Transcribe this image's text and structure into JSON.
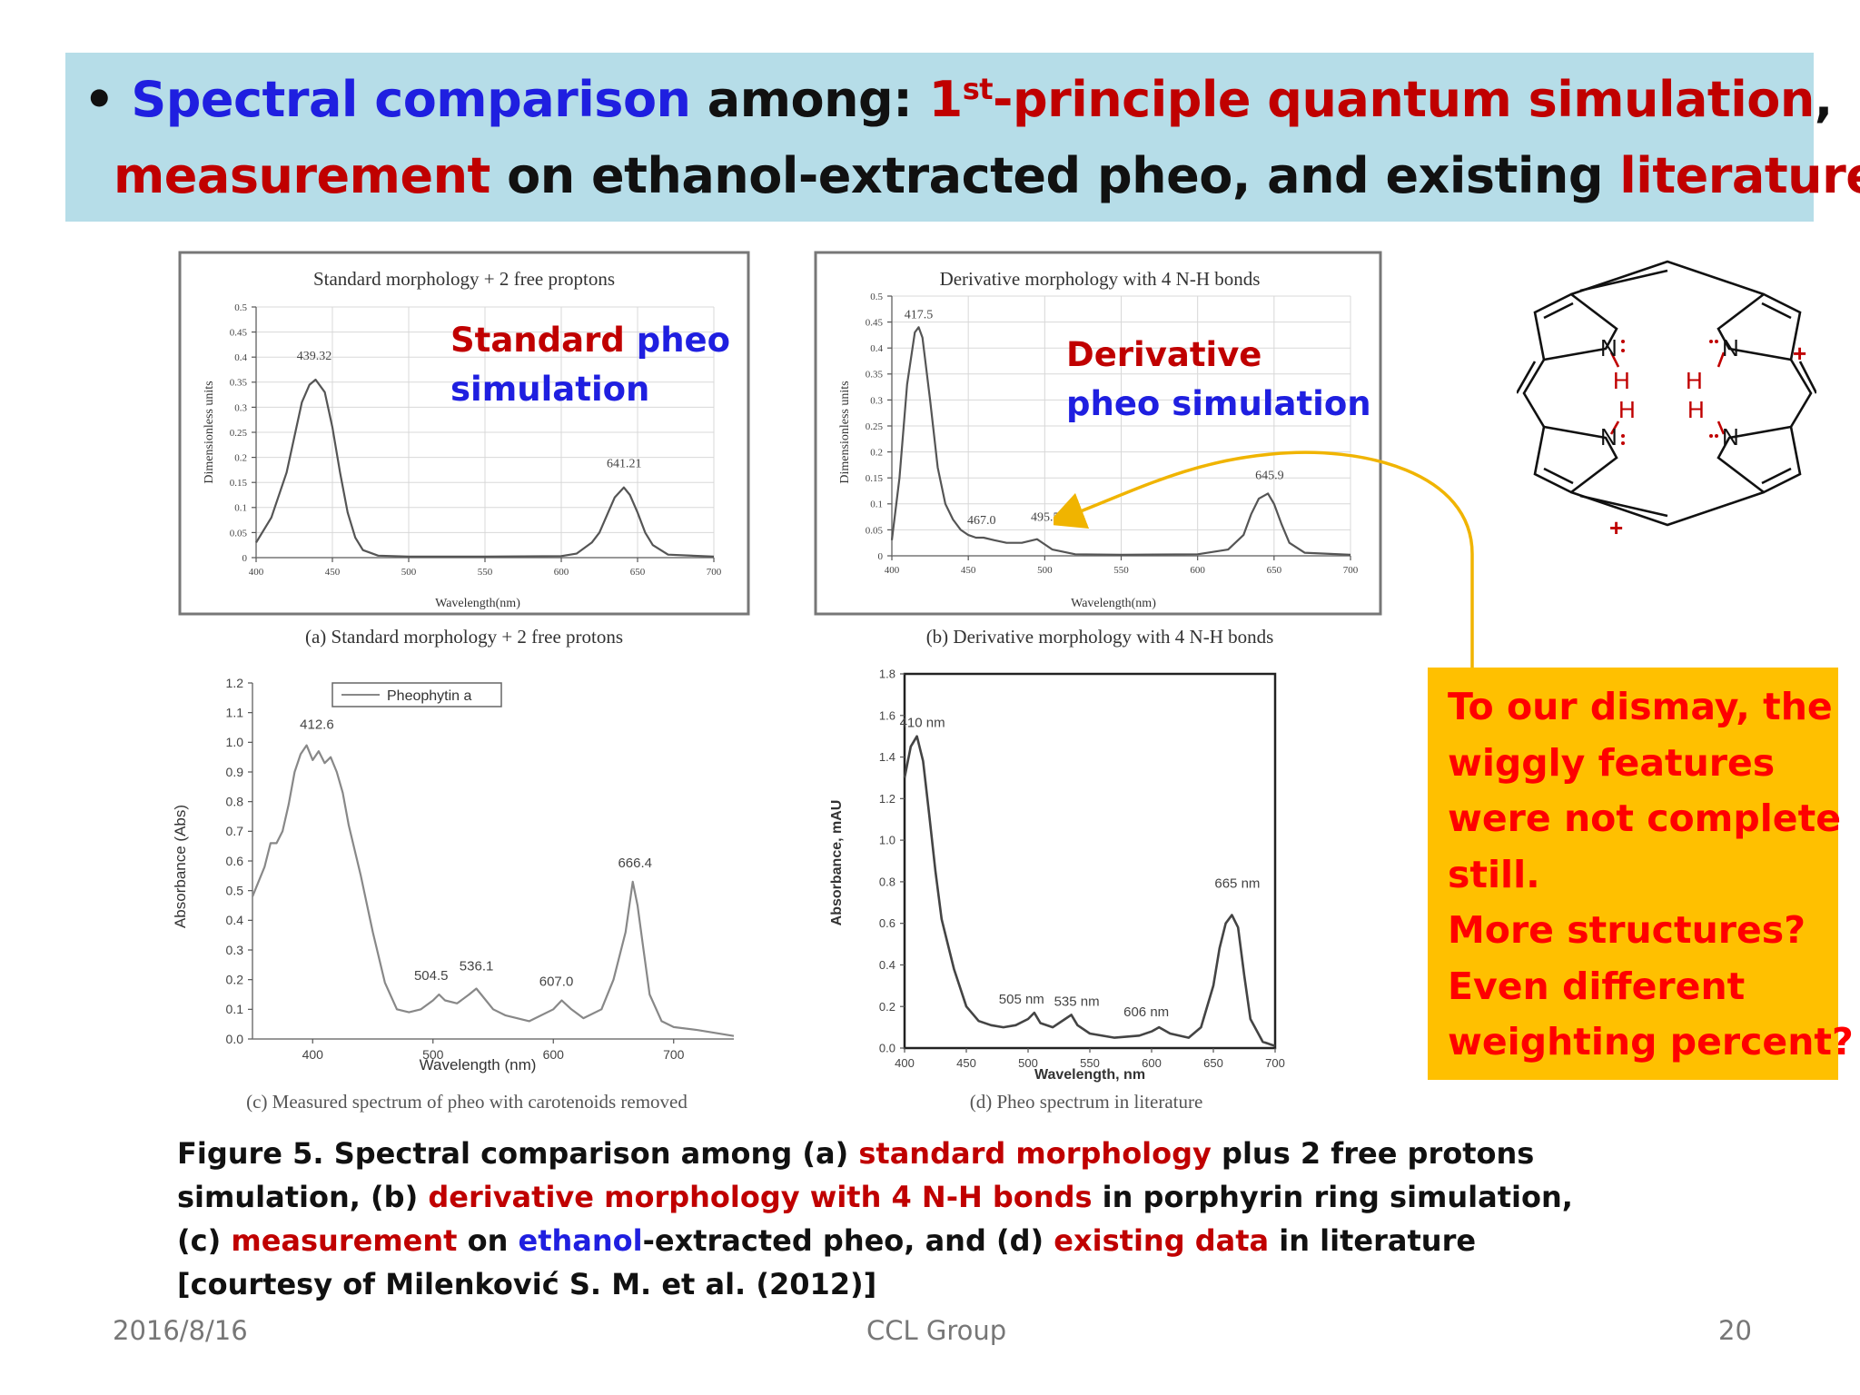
{
  "banner": {
    "bullet": "•",
    "l1_a": "Spectral comparison",
    "l1_b": " among: ",
    "l1_c": "1",
    "l1_sup": "st",
    "l1_d": "-principle quantum simulation",
    "l1_e": ",",
    "l2_a": "measurement",
    "l2_b": " on ethanol-extracted pheo, and existing ",
    "l2_c": "literature"
  },
  "panels": {
    "a_overlay_1": "Standard",
    "a_overlay_2": "pheo",
    "a_overlay_3": "simulation",
    "b_overlay_1": "Derivative",
    "b_overlay_2": "pheo simulation",
    "a_caption": "(a) Standard morphology + 2 free protons",
    "b_caption": "(b) Derivative morphology with 4 N-H bonds",
    "c_caption": "(c) Measured spectrum of pheo with carotenoids removed",
    "d_caption": "(d) Pheo spectrum in literature"
  },
  "chart_data": [
    {
      "type": "line",
      "title": "Standard morphology + 2 free proptons",
      "xlabel": "Wavelength(nm)",
      "ylabel": "Dimensionless units",
      "xlim": [
        400,
        700
      ],
      "ylim": [
        0,
        0.5
      ],
      "xticks": [
        "400",
        "450",
        "500",
        "550",
        "600",
        "650",
        "700"
      ],
      "yticks": [
        "0",
        "0.05",
        "0.1",
        "0.15",
        "0.2",
        "0.25",
        "0.3",
        "0.35",
        "0.4",
        "0.45",
        "0.5"
      ],
      "grid": true,
      "annotations": [
        "439.32",
        "641.21"
      ],
      "x": [
        400,
        410,
        420,
        425,
        430,
        435,
        439,
        445,
        450,
        455,
        460,
        465,
        470,
        480,
        500,
        550,
        600,
        610,
        620,
        625,
        630,
        635,
        641,
        645,
        650,
        655,
        660,
        670,
        700
      ],
      "y": [
        0.03,
        0.08,
        0.17,
        0.24,
        0.31,
        0.345,
        0.355,
        0.33,
        0.26,
        0.17,
        0.09,
        0.04,
        0.015,
        0.004,
        0.002,
        0.002,
        0.003,
        0.008,
        0.03,
        0.05,
        0.085,
        0.12,
        0.14,
        0.125,
        0.09,
        0.05,
        0.025,
        0.006,
        0.002
      ]
    },
    {
      "type": "line",
      "title": "Derivative morphology with 4 N-H bonds",
      "xlabel": "Wavelength(nm)",
      "ylabel": "Dimensionless units",
      "xlim": [
        400,
        700
      ],
      "ylim": [
        0,
        0.5
      ],
      "xticks": [
        "400",
        "450",
        "500",
        "550",
        "600",
        "650",
        "700"
      ],
      "yticks": [
        "0",
        "0.05",
        "0.1",
        "0.15",
        "0.2",
        "0.25",
        "0.3",
        "0.35",
        "0.4",
        "0.45",
        "0.5"
      ],
      "grid": true,
      "annotations": [
        "417.5",
        "467.0",
        "495.5",
        "645.9"
      ],
      "x": [
        400,
        405,
        410,
        415,
        417.5,
        420,
        425,
        430,
        435,
        440,
        445,
        450,
        455,
        460,
        467,
        475,
        485,
        495,
        505,
        520,
        550,
        600,
        620,
        630,
        635,
        640,
        646,
        650,
        655,
        660,
        670,
        700
      ],
      "y": [
        0.03,
        0.15,
        0.33,
        0.43,
        0.44,
        0.42,
        0.3,
        0.17,
        0.1,
        0.07,
        0.05,
        0.04,
        0.035,
        0.035,
        0.03,
        0.025,
        0.025,
        0.032,
        0.012,
        0.003,
        0.002,
        0.003,
        0.012,
        0.04,
        0.08,
        0.11,
        0.12,
        0.1,
        0.06,
        0.025,
        0.006,
        0.002
      ]
    },
    {
      "type": "line",
      "legend": "Pheophytin a",
      "xlabel": "Wavelength (nm)",
      "ylabel": "Absorbance (Abs)",
      "xlim": [
        350,
        750
      ],
      "ylim": [
        0,
        1.2
      ],
      "xticks": [
        "400",
        "500",
        "600",
        "700"
      ],
      "yticks": [
        "0.0",
        "0.1",
        "0.2",
        "0.3",
        "0.4",
        "0.5",
        "0.6",
        "0.7",
        "0.8",
        "0.9",
        "1.0",
        "1.1",
        "1.2"
      ],
      "grid": false,
      "annotations": [
        "412.6",
        "504.5",
        "536.1",
        "607.0",
        "666.4"
      ],
      "x": [
        350,
        360,
        365,
        370,
        375,
        380,
        385,
        390,
        395,
        400,
        405,
        410,
        415,
        420,
        425,
        430,
        440,
        450,
        460,
        470,
        480,
        490,
        500,
        505,
        510,
        520,
        530,
        536,
        540,
        550,
        560,
        580,
        600,
        607,
        615,
        625,
        640,
        650,
        660,
        666,
        670,
        675,
        680,
        690,
        700,
        720,
        750
      ],
      "y": [
        0.48,
        0.58,
        0.66,
        0.66,
        0.7,
        0.79,
        0.9,
        0.96,
        0.99,
        0.94,
        0.97,
        0.93,
        0.95,
        0.9,
        0.83,
        0.72,
        0.55,
        0.36,
        0.19,
        0.1,
        0.09,
        0.1,
        0.13,
        0.15,
        0.13,
        0.12,
        0.15,
        0.17,
        0.15,
        0.1,
        0.08,
        0.06,
        0.1,
        0.13,
        0.1,
        0.07,
        0.1,
        0.2,
        0.36,
        0.53,
        0.45,
        0.3,
        0.15,
        0.06,
        0.04,
        0.03,
        0.01
      ]
    },
    {
      "type": "line",
      "xlabel": "Wavelength, nm",
      "ylabel": "Absorbance, mAU",
      "xlim": [
        400,
        700
      ],
      "ylim": [
        0,
        1.8
      ],
      "xticks": [
        "400",
        "450",
        "500",
        "550",
        "600",
        "650",
        "700"
      ],
      "yticks": [
        "0.0",
        "0.2",
        "0.4",
        "0.6",
        "0.8",
        "1.0",
        "1.2",
        "1.4",
        "1.6",
        "1.8"
      ],
      "grid": false,
      "annotations": [
        "410 nm",
        "505 nm",
        "535 nm",
        "606 nm",
        "665 nm"
      ],
      "x": [
        400,
        405,
        410,
        415,
        420,
        425,
        430,
        440,
        450,
        460,
        470,
        480,
        490,
        500,
        505,
        510,
        520,
        530,
        535,
        540,
        550,
        570,
        590,
        600,
        606,
        615,
        630,
        640,
        650,
        655,
        660,
        665,
        670,
        675,
        680,
        690,
        700
      ],
      "y": [
        1.3,
        1.45,
        1.5,
        1.38,
        1.12,
        0.85,
        0.62,
        0.38,
        0.2,
        0.13,
        0.11,
        0.1,
        0.11,
        0.14,
        0.17,
        0.12,
        0.1,
        0.14,
        0.16,
        0.11,
        0.07,
        0.05,
        0.06,
        0.08,
        0.1,
        0.07,
        0.05,
        0.1,
        0.3,
        0.48,
        0.6,
        0.64,
        0.58,
        0.35,
        0.14,
        0.03,
        0.01
      ]
    }
  ],
  "callout": {
    "line1": "To our dismay, the",
    "line2": "wiggly features",
    "line3": "were not complete",
    "line4": "still.",
    "line5": "More structures?",
    "line6": "Even different",
    "line7": "weighting percent?"
  },
  "molecule": {
    "n_label": "N",
    "h_label": "H",
    "plus": "+"
  },
  "caption": {
    "c1a": "Figure 5. Spectral comparison among (a) ",
    "c1b": "standard morphology",
    "c1c": " plus 2 free protons",
    "c2a": "simulation, (b) ",
    "c2b": "derivative morphology with 4 N-H bonds",
    "c2c": " in porphyrin ring simulation,",
    "c3a": "(c) ",
    "c3b": "measurement",
    "c3c": " on ",
    "c3d": "ethanol",
    "c3e": "-extracted pheo, and (d) ",
    "c3f": "existing data",
    "c3g": " in literature",
    "c4": "[courtesy of Milenković S. M. et al. (2012)]"
  },
  "footer": {
    "date": "2016/8/16",
    "group": "CCL Group",
    "page": "20"
  },
  "colors": {
    "banner_bg": "#b6dde8",
    "blue": "#1f1fe0",
    "red": "#c00000",
    "callout_bg": "#ffc000",
    "callout_text": "#ff0000",
    "arrow": "#f0b400"
  }
}
